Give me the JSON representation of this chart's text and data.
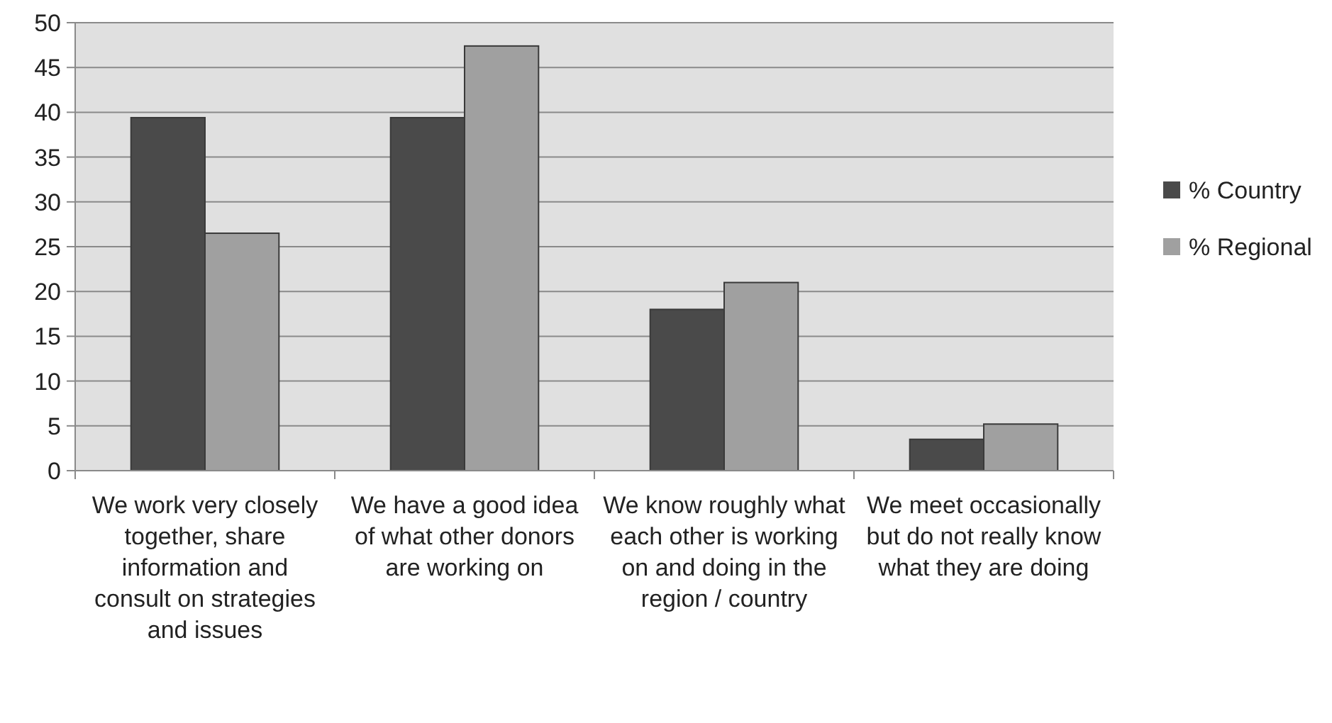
{
  "chart_data": {
    "type": "bar",
    "categories": [
      "We work very closely together, share information and consult on strategies and issues",
      "We have a good idea of what other donors are working on",
      "We know roughly what each other is working on and doing in the region / country",
      "We meet occasionally but do not really know what they are doing"
    ],
    "series": [
      {
        "name": "% Country",
        "color": "#4a4a4a",
        "values": [
          39.4,
          39.4,
          18.0,
          3.5
        ]
      },
      {
        "name": "% Regional",
        "color": "#a0a0a0",
        "values": [
          26.5,
          47.4,
          21.0,
          5.2
        ]
      }
    ],
    "ylim": [
      0,
      50
    ],
    "yticks": [
      0,
      5,
      10,
      15,
      20,
      25,
      30,
      35,
      40,
      45,
      50
    ],
    "grid": "y",
    "legend": "right"
  }
}
